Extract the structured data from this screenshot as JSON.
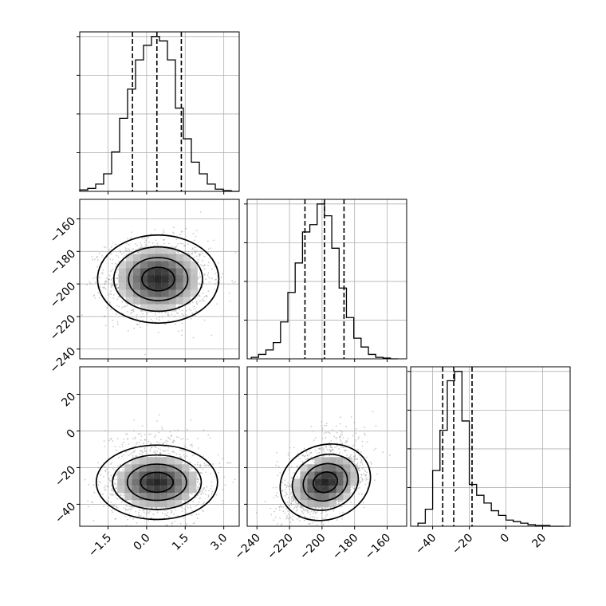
{
  "chart_data": {
    "type": "corner",
    "title": "",
    "grid": true,
    "colors": {
      "line": "#000000",
      "grid": "#b0b0b0",
      "scatter": "#8c8c8c"
    },
    "params": [
      {
        "ticks": [
          -1.5,
          0.0,
          1.5,
          3.0
        ],
        "tick_labels": [
          "−1.5",
          "0.0",
          "1.5",
          "3.0"
        ],
        "range": [
          -2.6,
          3.6
        ]
      },
      {
        "ticks": [
          -240,
          -220,
          -200,
          -180,
          -160
        ],
        "tick_labels": [
          "−240",
          "−220",
          "−200",
          "−180",
          "−160"
        ],
        "range": [
          -246,
          -148
        ]
      },
      {
        "ticks": [
          -40,
          -20,
          0,
          20
        ],
        "tick_labels": [
          "−40",
          "−20",
          "0",
          "20"
        ],
        "range": [
          -52,
          35
        ]
      }
    ],
    "histograms": [
      {
        "param": 0,
        "bin_edges": [
          -2.6,
          -2.29,
          -1.98,
          -1.67,
          -1.36,
          -1.05,
          -0.74,
          -0.43,
          -0.12,
          0.19,
          0.5,
          0.81,
          1.12,
          1.43,
          1.74,
          2.05,
          2.36,
          2.67,
          2.98,
          3.29,
          3.6
        ],
        "counts": [
          1,
          2,
          5,
          12,
          27,
          50,
          70,
          90,
          100,
          106,
          103,
          90,
          57,
          36,
          20,
          12,
          5,
          1.5,
          0.5,
          0
        ],
        "quantiles": [
          -0.55,
          0.4,
          1.35
        ]
      },
      {
        "param": 1,
        "bin_edges": [
          -243.5,
          -239,
          -234.5,
          -230,
          -225.5,
          -221,
          -216.5,
          -212,
          -207.5,
          -203,
          -198.5,
          -194,
          -189.5,
          -185,
          -180.5,
          -176,
          -171.5,
          -167,
          -162.5,
          -158,
          -153.5
        ],
        "counts": [
          1,
          3,
          6,
          11,
          25,
          45,
          65,
          86,
          91,
          105,
          97,
          75,
          48,
          28,
          14,
          8,
          3,
          1,
          0.5,
          0
        ],
        "quantiles": [
          -210.5,
          -198.5,
          -186.5
        ]
      },
      {
        "param": 2,
        "bin_edges": [
          -48,
          -44,
          -40,
          -36,
          -32,
          -28,
          -24,
          -20,
          -16,
          -12,
          -8,
          -4,
          0,
          4,
          8,
          12,
          16,
          20,
          24,
          28,
          32
        ],
        "counts": [
          2,
          11,
          36,
          62,
          94,
          100,
          68,
          27,
          20,
          15,
          10,
          7,
          4,
          3,
          2,
          1,
          0.5,
          0.5,
          0,
          0
        ],
        "quantiles": [
          -34.5,
          -28.5,
          -18.5
        ]
      }
    ],
    "scatter_panels": [
      {
        "x_param": 0,
        "y_param": 1,
        "center": [
          0.45,
          -197
        ],
        "sd": [
          1.0,
          12
        ],
        "corr": 0.0,
        "density_image": true,
        "contour_levels": 4
      },
      {
        "x_param": 0,
        "y_param": 2,
        "center": [
          0.4,
          -28
        ],
        "sd": [
          1.0,
          9
        ],
        "corr": 0.0,
        "density_image": true,
        "contour_levels": 4
      },
      {
        "x_param": 1,
        "y_param": 2,
        "center": [
          -198,
          -28
        ],
        "sd": [
          12,
          9
        ],
        "corr": 0.45,
        "density_image": true,
        "contour_levels": 4
      }
    ]
  }
}
